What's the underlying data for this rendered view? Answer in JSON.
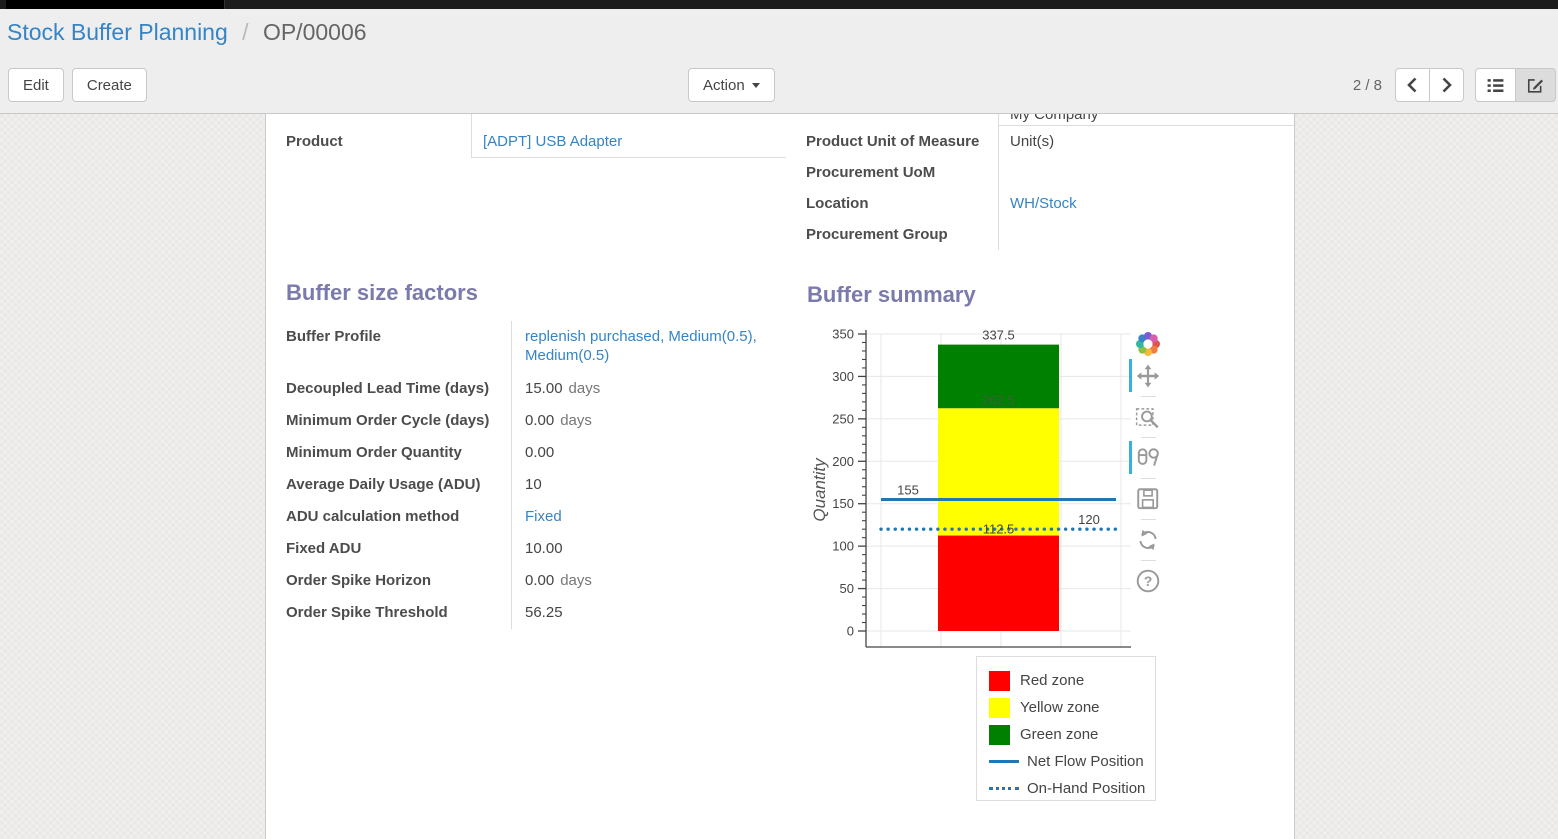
{
  "breadcrumb": {
    "parent": "Stock Buffer Planning",
    "separator": "/",
    "current": "OP/00006"
  },
  "toolbar": {
    "edit_label": "Edit",
    "create_label": "Create",
    "action_label": "Action",
    "pager": "2 / 8"
  },
  "form": {
    "clipped_top_value": "My Company",
    "left_group": {
      "rows": [
        {
          "label": "Product",
          "value": "[ADPT] USB Adapter",
          "link": true,
          "underline": true
        }
      ]
    },
    "right_group": {
      "rows": [
        {
          "label": "Product Unit of Measure",
          "value": "Unit(s)"
        },
        {
          "label": "Procurement UoM",
          "value": ""
        },
        {
          "label": "Location",
          "value": "WH/Stock",
          "link": true
        },
        {
          "label": "Procurement Group",
          "value": ""
        }
      ]
    },
    "sections": {
      "factors_title": "Buffer size factors",
      "summary_title": "Buffer summary"
    },
    "factors_rows": [
      {
        "label": "Buffer Profile",
        "value": "replenish purchased, Medium(0.5), Medium(0.5)",
        "link": true,
        "tall": true
      },
      {
        "label": "Decoupled Lead Time (days)",
        "value": "15.00",
        "suffix": "days"
      },
      {
        "label": "Minimum Order Cycle (days)",
        "value": "0.00",
        "suffix": "days"
      },
      {
        "label": "Minimum Order Quantity",
        "value": "0.00"
      },
      {
        "label": "Average Daily Usage (ADU)",
        "value": "10"
      },
      {
        "label": "ADU calculation method",
        "value": "Fixed",
        "link": true
      },
      {
        "label": "Fixed ADU",
        "value": "10.00"
      },
      {
        "label": "Order Spike Horizon",
        "value": "0.00",
        "suffix": "days"
      },
      {
        "label": "Order Spike Threshold",
        "value": "56.25"
      }
    ]
  },
  "chart_data": {
    "type": "bar",
    "title": "Buffer summary",
    "ylabel": "Quantity",
    "ylim": [
      0,
      350
    ],
    "yticks": [
      0,
      50,
      100,
      150,
      200,
      250,
      300,
      350
    ],
    "minor_tick_step": 10,
    "grid": true,
    "zones": [
      {
        "name": "Red zone",
        "color": "#ff0000",
        "from": 0,
        "to": 112.5
      },
      {
        "name": "Yellow zone",
        "color": "#ffff00",
        "from": 112.5,
        "to": 262.5
      },
      {
        "name": "Green zone",
        "color": "#008000",
        "from": 262.5,
        "to": 337.5
      }
    ],
    "lines": [
      {
        "name": "Net Flow Position",
        "color": "#1f77b4",
        "style": "solid",
        "value": 155
      },
      {
        "name": "On-Hand Position",
        "color": "#1f77b4",
        "style": "dotted",
        "value": 120
      }
    ],
    "annotations": [
      {
        "text": "337.5",
        "value": 337.5,
        "position": "above-bar",
        "color": "#444444"
      },
      {
        "text": "262.5",
        "value": 262.5,
        "position": "inside-green",
        "color": "#3d5f3d"
      },
      {
        "text": "112.5",
        "value": 112.5,
        "position": "on-bar",
        "color": "#444444"
      },
      {
        "text": "155",
        "value": 155,
        "position": "line-left",
        "color": "#444444"
      },
      {
        "text": "120",
        "value": 120,
        "position": "line-right",
        "color": "#444444"
      }
    ],
    "legend_position": "below-right"
  },
  "legend": {
    "items": [
      {
        "name": "Red zone",
        "swatch": "square",
        "color": "#ff0000"
      },
      {
        "name": "Yellow zone",
        "swatch": "square",
        "color": "#ffff00"
      },
      {
        "name": "Green zone",
        "swatch": "square",
        "color": "#008000"
      },
      {
        "name": "Net Flow Position",
        "swatch": "line-solid",
        "color": "#1f77b4"
      },
      {
        "name": "On-Hand Position",
        "swatch": "line-dotted",
        "color": "#1f77b4"
      }
    ]
  },
  "modebar": {
    "icons": [
      {
        "name": "plotly-logo"
      },
      {
        "name": "pan",
        "active": true
      },
      {
        "name": "box-zoom"
      },
      {
        "name": "compare-data-on-hover",
        "active": true
      },
      {
        "name": "download-plot"
      },
      {
        "name": "reset-axes"
      },
      {
        "name": "help"
      }
    ]
  },
  "colors": {
    "link": "#3584c6",
    "heading": "#7b7aac",
    "accent_blue": "#1f77b4",
    "modebar_active": "#35b1e2"
  }
}
